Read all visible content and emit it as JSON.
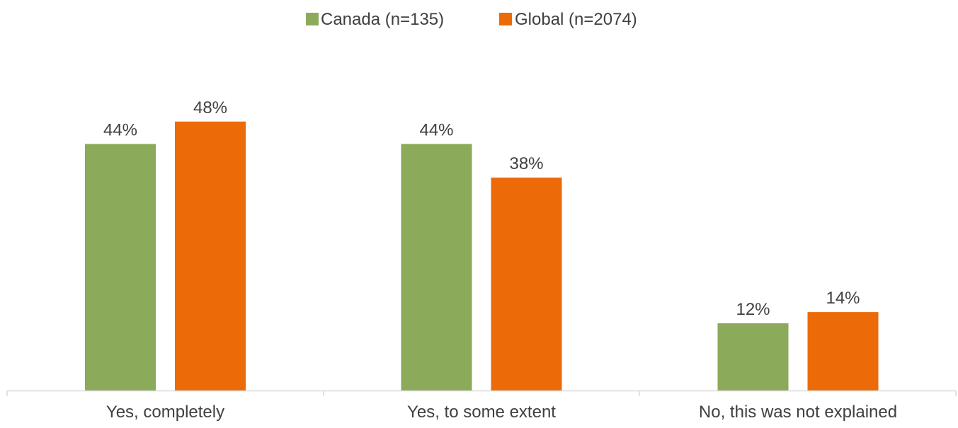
{
  "chart_data": {
    "type": "bar",
    "categories": [
      "Yes, completely",
      "Yes, to some extent",
      "No, this was not explained"
    ],
    "series": [
      {
        "name": "Canada (n=135)",
        "color": "#8BAA5A",
        "values": [
          44,
          44,
          12
        ],
        "labels": [
          "44%",
          "44%",
          "12%"
        ]
      },
      {
        "name": "Global (n=2074)",
        "color": "#EC6A07",
        "values": [
          48,
          38,
          14
        ],
        "labels": [
          "48%",
          "38%",
          "14%"
        ]
      }
    ],
    "ylim": [
      0,
      70
    ],
    "unit": "%",
    "grid": false,
    "legend_position": "top-center"
  }
}
